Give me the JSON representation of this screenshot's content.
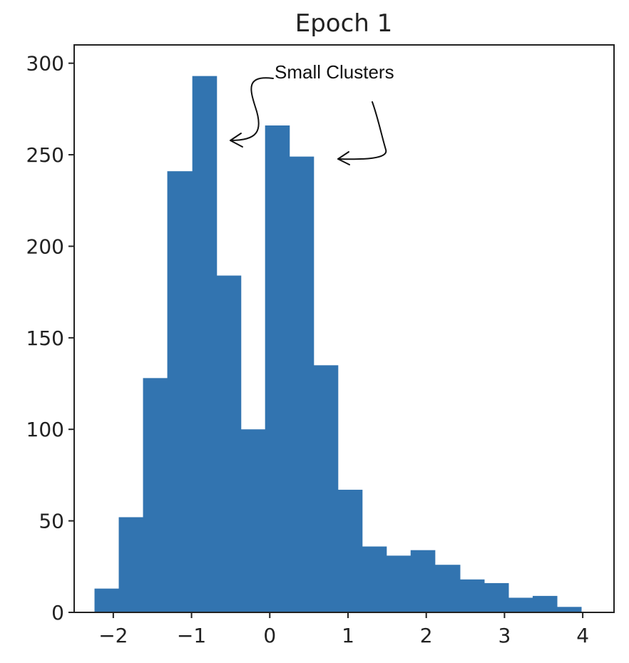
{
  "chart_data": {
    "type": "bar",
    "title": "Epoch 1",
    "xlabel": "",
    "ylabel": "",
    "xlim": [
      -2.5,
      4.4
    ],
    "ylim": [
      0,
      310
    ],
    "bar_color": "#3274b0",
    "grid": false,
    "legend": "none",
    "x_ticks": [
      {
        "value": -2,
        "label": "−2"
      },
      {
        "value": -1,
        "label": "−1"
      },
      {
        "value": 0,
        "label": "0"
      },
      {
        "value": 1,
        "label": "1"
      },
      {
        "value": 2,
        "label": "2"
      },
      {
        "value": 3,
        "label": "3"
      },
      {
        "value": 4,
        "label": "4"
      }
    ],
    "y_ticks": [
      {
        "value": 0,
        "label": "0"
      },
      {
        "value": 50,
        "label": "50"
      },
      {
        "value": 100,
        "label": "100"
      },
      {
        "value": 150,
        "label": "150"
      },
      {
        "value": 200,
        "label": "200"
      },
      {
        "value": 250,
        "label": "250"
      },
      {
        "value": 300,
        "label": "300"
      }
    ],
    "bins": [
      {
        "x0": -2.24,
        "x1": -1.93,
        "count": 13
      },
      {
        "x0": -1.93,
        "x1": -1.62,
        "count": 52
      },
      {
        "x0": -1.62,
        "x1": -1.31,
        "count": 128
      },
      {
        "x0": -1.31,
        "x1": -0.99,
        "count": 241
      },
      {
        "x0": -0.99,
        "x1": -0.68,
        "count": 293
      },
      {
        "x0": -0.68,
        "x1": -0.37,
        "count": 184
      },
      {
        "x0": -0.37,
        "x1": -0.06,
        "count": 100
      },
      {
        "x0": -0.06,
        "x1": 0.25,
        "count": 266
      },
      {
        "x0": 0.25,
        "x1": 0.56,
        "count": 249
      },
      {
        "x0": 0.56,
        "x1": 0.87,
        "count": 135
      },
      {
        "x0": 0.87,
        "x1": 1.18,
        "count": 67
      },
      {
        "x0": 1.18,
        "x1": 1.49,
        "count": 36
      },
      {
        "x0": 1.49,
        "x1": 1.8,
        "count": 31
      },
      {
        "x0": 1.8,
        "x1": 2.11,
        "count": 34
      },
      {
        "x0": 2.11,
        "x1": 2.43,
        "count": 26
      },
      {
        "x0": 2.43,
        "x1": 2.74,
        "count": 18
      },
      {
        "x0": 2.74,
        "x1": 3.05,
        "count": 16
      },
      {
        "x0": 3.05,
        "x1": 3.36,
        "count": 8
      },
      {
        "x0": 3.36,
        "x1": 3.67,
        "count": 9
      },
      {
        "x0": 3.67,
        "x1": 3.98,
        "count": 3
      }
    ],
    "annotation": {
      "text": "Small Clusters",
      "targets": [
        -0.6,
        0.85
      ]
    }
  }
}
